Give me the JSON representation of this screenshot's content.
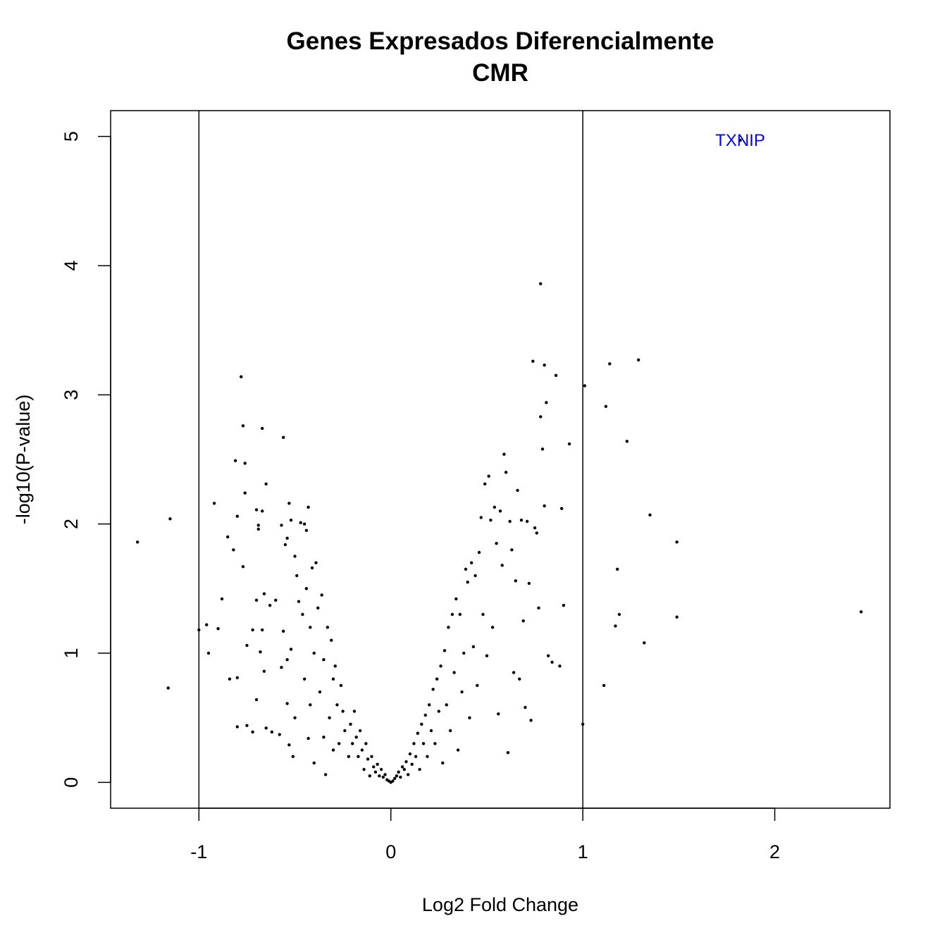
{
  "chart_data": {
    "type": "scatter",
    "title": "Genes Expresados Diferencialmente",
    "subtitle": "CMR",
    "xlabel": "Log2 Fold Change",
    "ylabel": "-log10(P-value)",
    "xlim": [
      -1.46,
      2.6
    ],
    "ylim": [
      -0.2,
      5.2
    ],
    "xticks": [
      "-1",
      "0",
      "1",
      "2"
    ],
    "yticks": [
      "0",
      "1",
      "2",
      "3",
      "4",
      "5"
    ],
    "vlines": [
      -1,
      1
    ],
    "point_color": "#000000",
    "annotation": {
      "text": "TXNIP",
      "x": 1.82,
      "y": 4.97,
      "color": "#0000ff"
    },
    "points": [
      [
        -1.32,
        1.86
      ],
      [
        -1.15,
        2.04
      ],
      [
        -1.16,
        0.73
      ],
      [
        -1.0,
        1.18
      ],
      [
        -0.96,
        1.22
      ],
      [
        -0.95,
        1.0
      ],
      [
        -0.92,
        2.16
      ],
      [
        -0.9,
        1.19
      ],
      [
        -0.88,
        1.42
      ],
      [
        -0.85,
        1.9
      ],
      [
        -0.84,
        0.8
      ],
      [
        -0.82,
        1.8
      ],
      [
        -0.81,
        2.49
      ],
      [
        -0.8,
        2.06
      ],
      [
        -0.8,
        0.81
      ],
      [
        -0.8,
        0.43
      ],
      [
        -0.78,
        3.14
      ],
      [
        -0.77,
        2.76
      ],
      [
        -0.77,
        1.67
      ],
      [
        -0.76,
        2.47
      ],
      [
        -0.76,
        2.24
      ],
      [
        -0.75,
        1.06
      ],
      [
        -0.75,
        0.44
      ],
      [
        -0.72,
        1.18
      ],
      [
        -0.72,
        0.39
      ],
      [
        -0.7,
        2.11
      ],
      [
        -0.7,
        1.41
      ],
      [
        -0.7,
        0.64
      ],
      [
        -0.69,
        1.99
      ],
      [
        -0.69,
        1.96
      ],
      [
        -0.68,
        1.01
      ],
      [
        -0.67,
        2.74
      ],
      [
        -0.67,
        2.1
      ],
      [
        -0.67,
        1.18
      ],
      [
        -0.66,
        1.46
      ],
      [
        -0.66,
        0.86
      ],
      [
        -0.65,
        2.31
      ],
      [
        -0.65,
        0.42
      ],
      [
        -0.63,
        1.37
      ],
      [
        -0.62,
        0.39
      ],
      [
        -0.6,
        1.41
      ],
      [
        -0.58,
        0.37
      ],
      [
        -0.57,
        1.99
      ],
      [
        -0.57,
        0.89
      ],
      [
        -0.56,
        2.67
      ],
      [
        -0.56,
        1.17
      ],
      [
        -0.55,
        1.84
      ],
      [
        -0.54,
        1.89
      ],
      [
        -0.54,
        0.95
      ],
      [
        -0.54,
        0.61
      ],
      [
        -0.53,
        2.16
      ],
      [
        -0.53,
        0.29
      ],
      [
        -0.52,
        2.03
      ],
      [
        -0.52,
        1.03
      ],
      [
        -0.51,
        0.2
      ],
      [
        -0.5,
        1.75
      ],
      [
        -0.5,
        0.5
      ],
      [
        -0.49,
        1.6
      ],
      [
        -0.48,
        1.4
      ],
      [
        -0.47,
        2.01
      ],
      [
        -0.46,
        1.3
      ],
      [
        -0.45,
        2.0
      ],
      [
        -0.45,
        0.8
      ],
      [
        -0.44,
        1.95
      ],
      [
        -0.44,
        1.5
      ],
      [
        -0.43,
        2.13
      ],
      [
        -0.43,
        0.34
      ],
      [
        -0.42,
        1.2
      ],
      [
        -0.42,
        0.6
      ],
      [
        -0.41,
        1.66
      ],
      [
        -0.4,
        1.0
      ],
      [
        -0.4,
        0.15
      ],
      [
        -0.39,
        1.7
      ],
      [
        -0.38,
        1.35
      ],
      [
        -0.37,
        0.7
      ],
      [
        -0.36,
        1.45
      ],
      [
        -0.35,
        0.95
      ],
      [
        -0.35,
        0.35
      ],
      [
        -0.34,
        0.06
      ],
      [
        -0.33,
        1.2
      ],
      [
        -0.32,
        0.5
      ],
      [
        -0.31,
        1.1
      ],
      [
        -0.3,
        0.8
      ],
      [
        -0.3,
        0.25
      ],
      [
        -0.29,
        0.9
      ],
      [
        -0.28,
        0.6
      ],
      [
        -0.27,
        0.3
      ],
      [
        -0.26,
        0.75
      ],
      [
        -0.25,
        0.55
      ],
      [
        -0.24,
        0.4
      ],
      [
        -0.22,
        0.2
      ],
      [
        -0.21,
        0.45
      ],
      [
        -0.2,
        0.3
      ],
      [
        -0.19,
        0.55
      ],
      [
        -0.18,
        0.35
      ],
      [
        -0.17,
        0.2
      ],
      [
        -0.16,
        0.4
      ],
      [
        -0.15,
        0.25
      ],
      [
        -0.14,
        0.1
      ],
      [
        -0.13,
        0.3
      ],
      [
        -0.12,
        0.18
      ],
      [
        -0.11,
        0.05
      ],
      [
        -0.1,
        0.2
      ],
      [
        -0.09,
        0.12
      ],
      [
        -0.08,
        0.08
      ],
      [
        -0.07,
        0.14
      ],
      [
        -0.06,
        0.05
      ],
      [
        -0.05,
        0.1
      ],
      [
        -0.04,
        0.04
      ],
      [
        -0.03,
        0.06
      ],
      [
        -0.02,
        0.02
      ],
      [
        -0.01,
        0.01
      ],
      [
        0.0,
        0.0
      ],
      [
        0.01,
        0.01
      ],
      [
        0.02,
        0.03
      ],
      [
        0.03,
        0.05
      ],
      [
        0.04,
        0.08
      ],
      [
        0.05,
        0.04
      ],
      [
        0.06,
        0.12
      ],
      [
        0.07,
        0.1
      ],
      [
        0.08,
        0.16
      ],
      [
        0.09,
        0.06
      ],
      [
        0.1,
        0.22
      ],
      [
        0.11,
        0.14
      ],
      [
        0.12,
        0.3
      ],
      [
        0.13,
        0.2
      ],
      [
        0.14,
        0.38
      ],
      [
        0.15,
        0.1
      ],
      [
        0.16,
        0.45
      ],
      [
        0.17,
        0.3
      ],
      [
        0.18,
        0.52
      ],
      [
        0.19,
        0.2
      ],
      [
        0.2,
        0.6
      ],
      [
        0.21,
        0.4
      ],
      [
        0.22,
        0.72
      ],
      [
        0.23,
        0.3
      ],
      [
        0.24,
        0.8
      ],
      [
        0.25,
        0.55
      ],
      [
        0.26,
        0.9
      ],
      [
        0.27,
        0.15
      ],
      [
        0.28,
        1.02
      ],
      [
        0.29,
        0.6
      ],
      [
        0.3,
        1.2
      ],
      [
        0.31,
        0.4
      ],
      [
        0.32,
        1.3
      ],
      [
        0.33,
        0.85
      ],
      [
        0.34,
        1.42
      ],
      [
        0.35,
        0.25
      ],
      [
        0.36,
        1.3
      ],
      [
        0.37,
        0.7
      ],
      [
        0.38,
        1.0
      ],
      [
        0.39,
        1.65
      ],
      [
        0.4,
        1.55
      ],
      [
        0.41,
        0.5
      ],
      [
        0.42,
        1.7
      ],
      [
        0.43,
        1.05
      ],
      [
        0.44,
        1.6
      ],
      [
        0.45,
        0.75
      ],
      [
        0.46,
        1.78
      ],
      [
        0.47,
        2.05
      ],
      [
        0.48,
        1.3
      ],
      [
        0.49,
        2.31
      ],
      [
        0.5,
        0.98
      ],
      [
        0.51,
        2.37
      ],
      [
        0.52,
        2.03
      ],
      [
        0.53,
        1.2
      ],
      [
        0.54,
        2.13
      ],
      [
        0.55,
        1.85
      ],
      [
        0.56,
        0.53
      ],
      [
        0.57,
        2.1
      ],
      [
        0.58,
        1.68
      ],
      [
        0.59,
        2.54
      ],
      [
        0.6,
        2.4
      ],
      [
        0.61,
        0.23
      ],
      [
        0.62,
        2.02
      ],
      [
        0.63,
        1.8
      ],
      [
        0.64,
        0.85
      ],
      [
        0.65,
        1.56
      ],
      [
        0.66,
        2.26
      ],
      [
        0.67,
        0.8
      ],
      [
        0.68,
        2.03
      ],
      [
        0.69,
        1.25
      ],
      [
        0.7,
        0.58
      ],
      [
        0.71,
        2.02
      ],
      [
        0.72,
        1.54
      ],
      [
        0.73,
        0.48
      ],
      [
        0.74,
        3.26
      ],
      [
        0.75,
        1.97
      ],
      [
        0.76,
        1.93
      ],
      [
        0.77,
        1.35
      ],
      [
        0.78,
        2.83
      ],
      [
        0.78,
        3.86
      ],
      [
        0.79,
        2.58
      ],
      [
        0.8,
        3.23
      ],
      [
        0.8,
        2.14
      ],
      [
        0.81,
        2.94
      ],
      [
        0.82,
        0.98
      ],
      [
        0.84,
        0.93
      ],
      [
        0.86,
        3.15
      ],
      [
        0.88,
        0.9
      ],
      [
        0.89,
        2.12
      ],
      [
        0.9,
        1.37
      ],
      [
        0.93,
        2.62
      ],
      [
        1.0,
        0.45
      ],
      [
        1.01,
        3.07
      ],
      [
        1.11,
        0.75
      ],
      [
        1.12,
        2.91
      ],
      [
        1.14,
        3.24
      ],
      [
        1.17,
        1.21
      ],
      [
        1.18,
        1.65
      ],
      [
        1.19,
        1.3
      ],
      [
        1.23,
        2.64
      ],
      [
        1.29,
        3.27
      ],
      [
        1.32,
        1.08
      ],
      [
        1.35,
        2.07
      ],
      [
        1.49,
        1.86
      ],
      [
        1.49,
        1.28
      ],
      [
        2.45,
        1.32
      ],
      [
        1.82,
        4.97
      ]
    ]
  }
}
